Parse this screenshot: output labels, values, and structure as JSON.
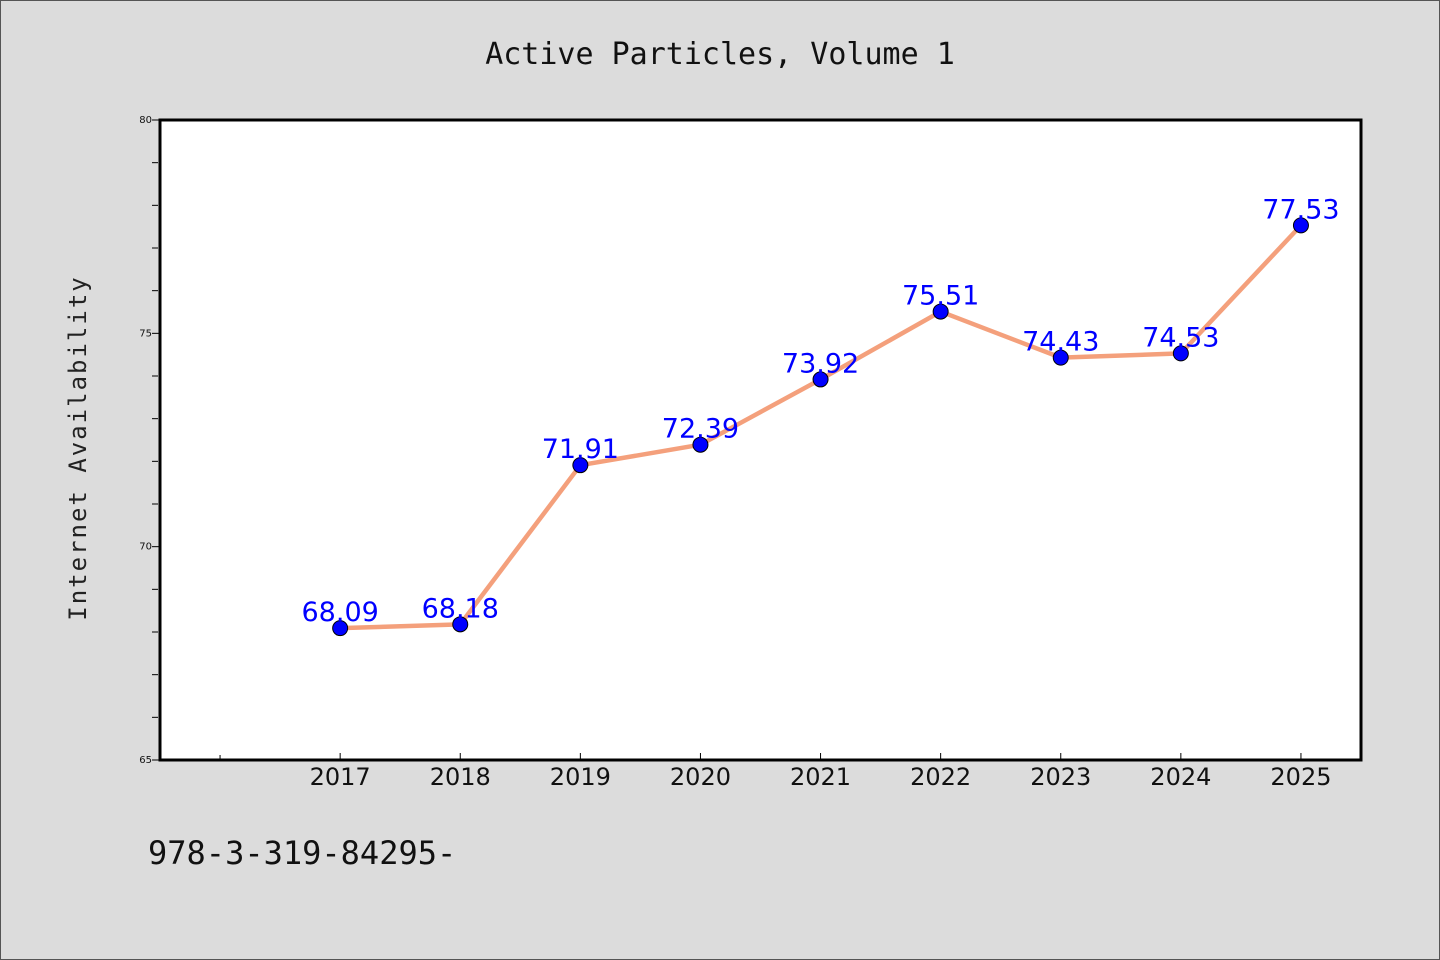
{
  "chart_data": {
    "type": "line",
    "title": "Active Particles, Volume 1",
    "xlabel": "",
    "ylabel": "Internet Availability",
    "x": [
      "2017",
      "2018",
      "2019",
      "2020",
      "2021",
      "2022",
      "2023",
      "2024",
      "2025"
    ],
    "series": [
      {
        "values": [
          68.09,
          68.18,
          71.91,
          72.39,
          73.92,
          75.51,
          74.43,
          74.53,
          77.53
        ],
        "data_labels": [
          "68.09",
          "68.18",
          "71.91",
          "72.39",
          "73.92",
          "75.51",
          "74.43",
          "74.53",
          "77.53"
        ],
        "line_color": "#f4a07c",
        "marker_color": "#0000ff"
      }
    ],
    "ylim": [
      65,
      80
    ],
    "yticks": [
      "65",
      "70",
      "75",
      "80"
    ],
    "x_range": [
      2015.5,
      2025.5
    ],
    "grid": false,
    "legend": "none",
    "label_color": "#0000ff",
    "plot_background": "#ffffff",
    "figure_background": "#dcdcdc"
  },
  "footer": {
    "text": "978-3-319-84295-"
  }
}
